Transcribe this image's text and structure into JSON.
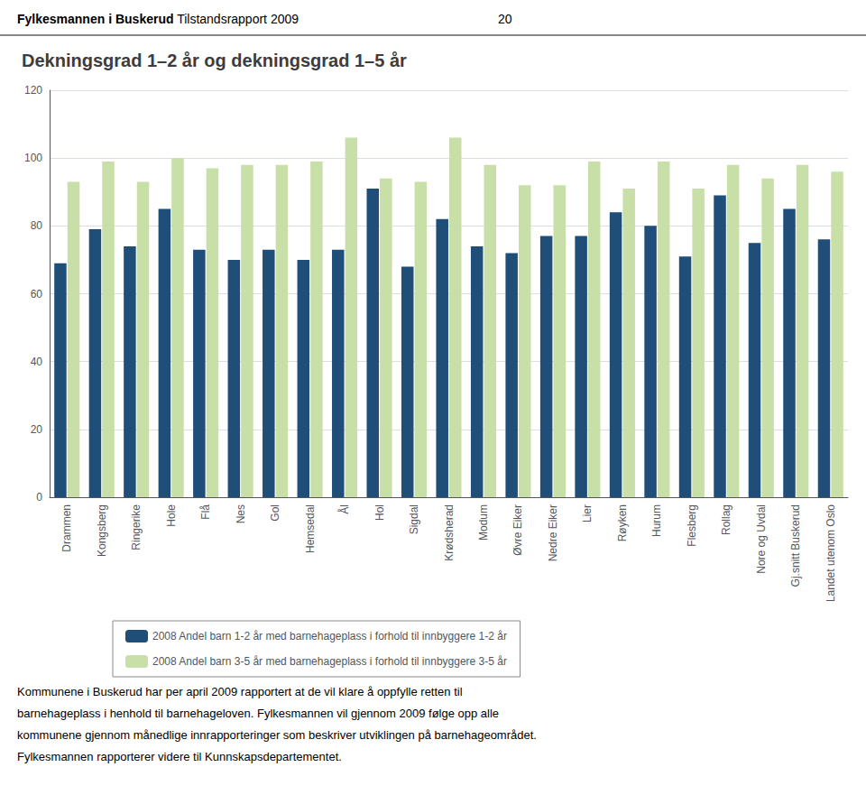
{
  "chart_data": {
    "type": "bar",
    "title": "Dekningsgrad 1–2 år og dekningsgrad 1–5 år",
    "annotations": [
      "Fylkesmannen i Buskerud",
      "Tilstandsrapport 2009",
      "20",
      "Kommunene i Buskerud har per april 2009 rapportert at de vil klare å oppfylle retten til",
      "barnehageplass i henhold til barnehageloven. Fylkesmannen vil gjennom 2009 følge opp alle",
      "kommunene gjennom månedlige innrapporteringer som beskriver utviklingen på barnehageområdet.",
      "Fylkesmannen rapporterer videre til Kunnskapsdepartementet."
    ],
    "categories": [
      "Drammen",
      "Kongsberg",
      "Ringerike",
      "Hole",
      "Flå",
      "Nes",
      "Gol",
      "Hemsedal",
      "Ål",
      "Hol",
      "Sigdal",
      "Krødsherad",
      "Modum",
      "Øvre Eiker",
      "Nedre Eiker",
      "Lier",
      "Røyken",
      "Hurum",
      "Flesberg",
      "Rollag",
      "Nore og Uvdal",
      "Gj.snitt Buskerud",
      "Landet utenom Oslo"
    ],
    "series": [
      {
        "name": "2008 Andel barn 1-2 år med barnehageplass i forhold til innbyggere 1-2 år",
        "color": "#1F4E79",
        "values": [
          69,
          79,
          74,
          85,
          73,
          70,
          73,
          70,
          73,
          91,
          68,
          82,
          74,
          72,
          77,
          77,
          84,
          80,
          71,
          89,
          75,
          85,
          76
        ]
      },
      {
        "name": "2008 Andel barn 3-5 år med barnehageplass i forhold til innbyggere 3-5 år",
        "color": "#C8DFA8",
        "values": [
          93,
          99,
          93,
          100,
          97,
          98,
          98,
          99,
          106,
          94,
          93,
          106,
          98,
          92,
          92,
          99,
          91,
          99,
          91,
          98,
          94,
          98,
          96
        ]
      }
    ],
    "ylim": [
      0,
      120
    ],
    "yticks": [
      0,
      20,
      40,
      60,
      80,
      100,
      120
    ],
    "grid": true,
    "legend": "bottom"
  }
}
